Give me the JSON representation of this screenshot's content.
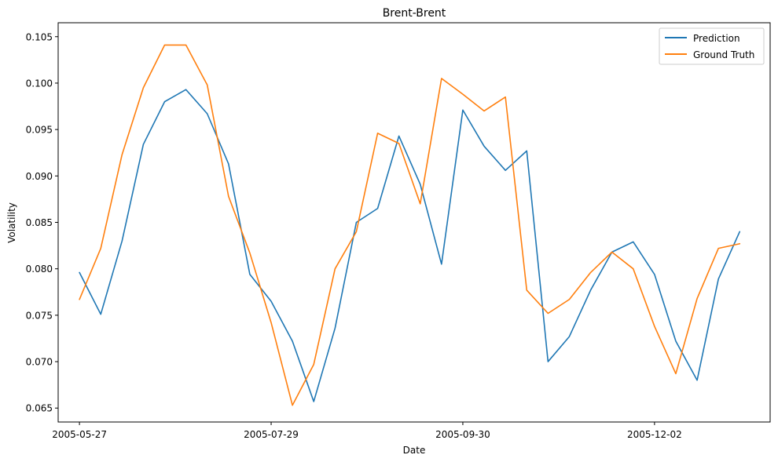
{
  "chart_data": {
    "type": "line",
    "title": "Brent-Brent",
    "xlabel": "Date",
    "ylabel": "Volatility",
    "ylim": [
      0.0635,
      0.1065
    ],
    "xlim": [
      "2005-05-20",
      "2006-01-09"
    ],
    "yticks": [
      "0.065",
      "0.070",
      "0.075",
      "0.080",
      "0.085",
      "0.090",
      "0.095",
      "0.100",
      "0.105"
    ],
    "xticks": [
      "2005-05-27",
      "2005-07-29",
      "2005-09-30",
      "2005-12-02"
    ],
    "grid": false,
    "legend_position": "top-right",
    "x": [
      "2005-05-27",
      "2005-06-03",
      "2005-06-10",
      "2005-06-17",
      "2005-06-24",
      "2005-07-01",
      "2005-07-08",
      "2005-07-15",
      "2005-07-22",
      "2005-07-29",
      "2005-08-05",
      "2005-08-12",
      "2005-08-19",
      "2005-08-26",
      "2005-09-02",
      "2005-09-09",
      "2005-09-16",
      "2005-09-23",
      "2005-09-30",
      "2005-10-07",
      "2005-10-14",
      "2005-10-21",
      "2005-10-28",
      "2005-11-04",
      "2005-11-11",
      "2005-11-18",
      "2005-11-25",
      "2005-12-02",
      "2005-12-09",
      "2005-12-16",
      "2005-12-23",
      "2005-12-30"
    ],
    "series": [
      {
        "name": "Prediction",
        "color": "#1f77b4",
        "values": [
          0.0796,
          0.0751,
          0.083,
          0.0934,
          0.098,
          0.0993,
          0.0967,
          0.0913,
          0.0794,
          0.0765,
          0.0722,
          0.0657,
          0.0736,
          0.085,
          0.0865,
          0.0943,
          0.0891,
          0.0805,
          0.0971,
          0.0932,
          0.0906,
          0.0927,
          0.07,
          0.0727,
          0.0777,
          0.0818,
          0.0829,
          0.0794,
          0.0722,
          0.068,
          0.0789,
          0.084
        ]
      },
      {
        "name": "Ground Truth",
        "color": "#ff7f0e",
        "values": [
          0.0767,
          0.0822,
          0.0923,
          0.0995,
          0.1041,
          0.1041,
          0.0998,
          0.0878,
          0.0817,
          0.0742,
          0.0653,
          0.0697,
          0.08,
          0.084,
          0.0946,
          0.0935,
          0.087,
          0.1005,
          0.0988,
          0.097,
          0.0985,
          0.0777,
          0.0752,
          0.0767,
          0.0796,
          0.0818,
          0.08,
          0.0738,
          0.0687,
          0.0768,
          0.0822,
          0.0827
        ]
      }
    ]
  }
}
